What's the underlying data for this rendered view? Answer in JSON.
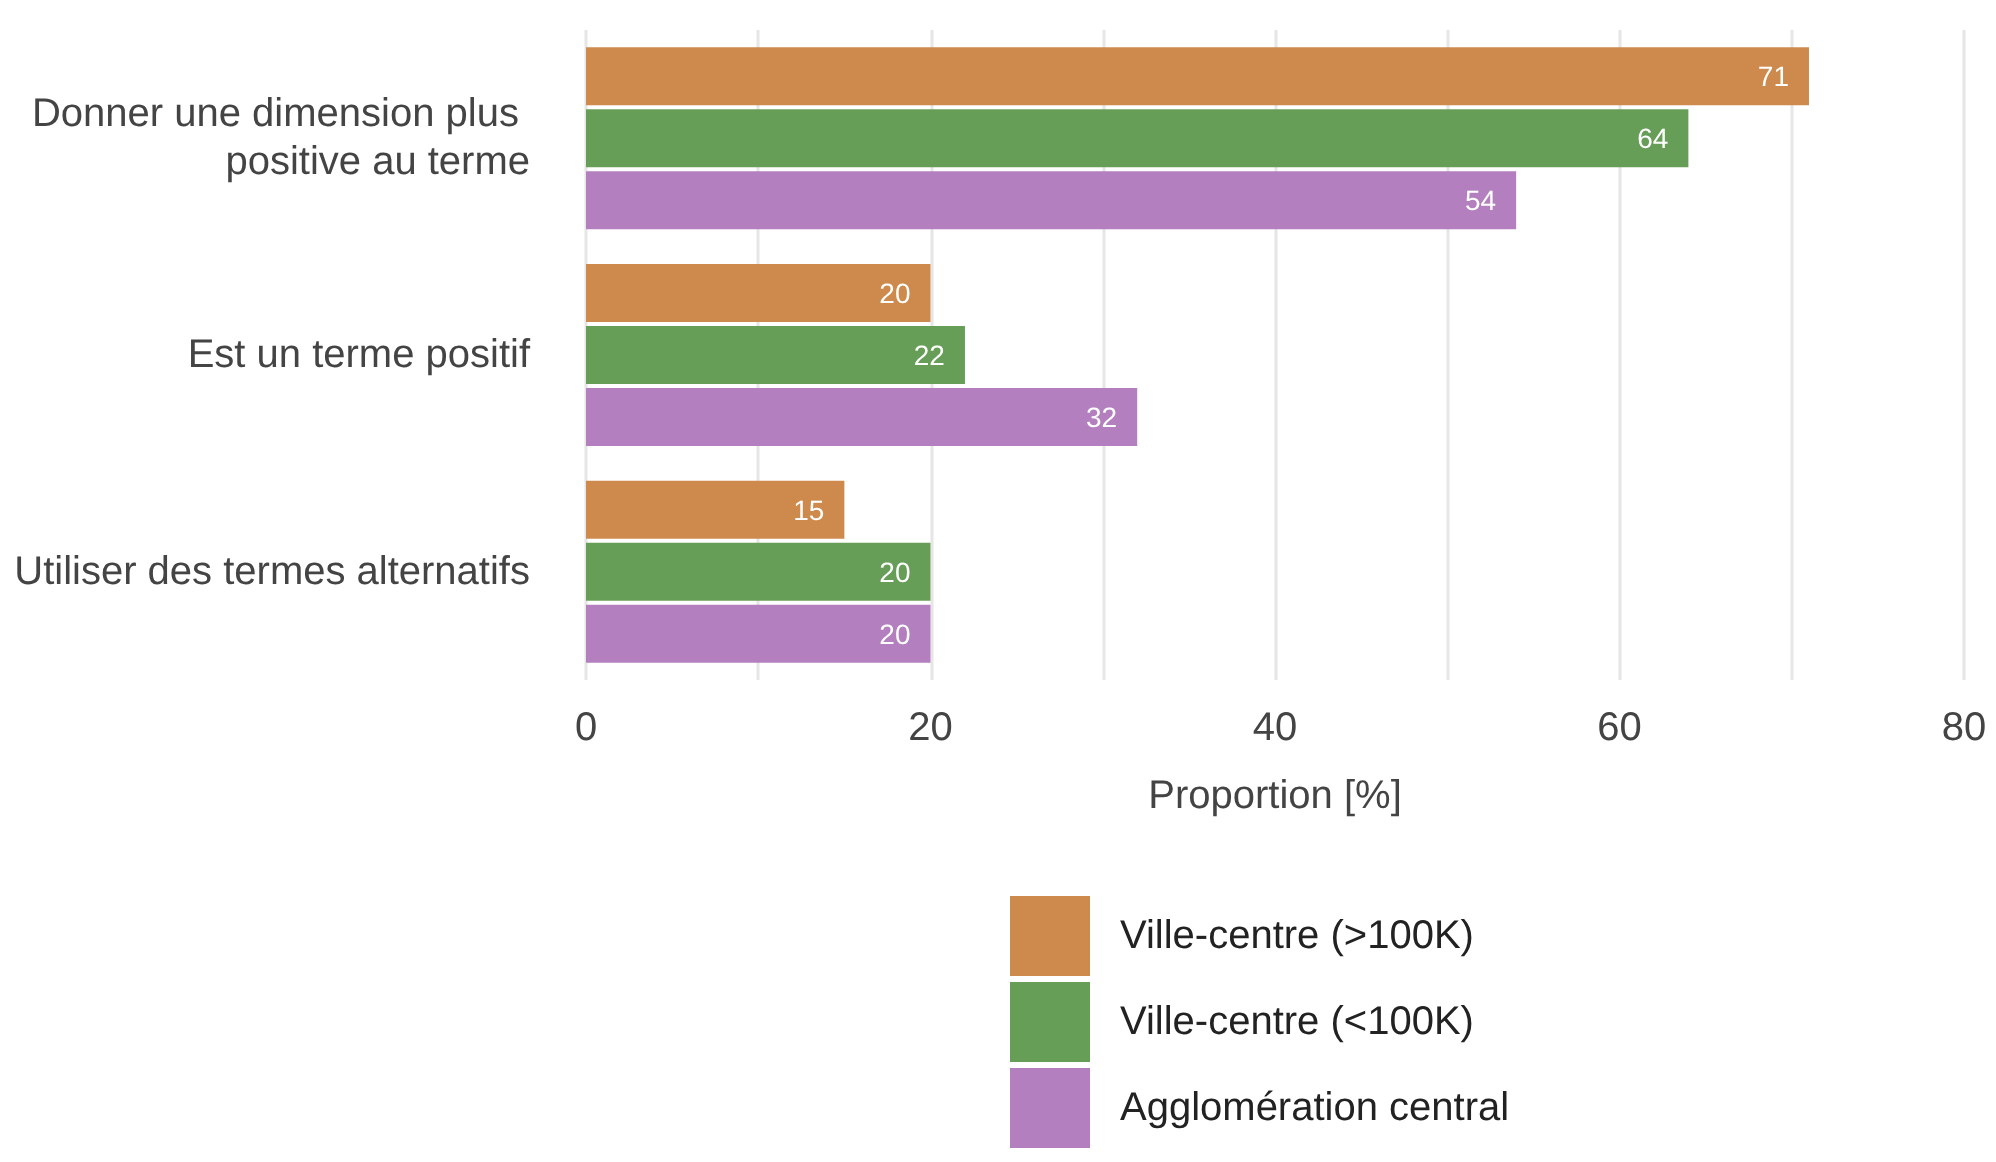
{
  "chart_data": {
    "type": "bar",
    "orientation": "horizontal",
    "xlabel": "Proportion [%]",
    "categories": [
      "Donner une dimension plus positive au terme",
      "Est un terme positif",
      "Utiliser des termes alternatifs"
    ],
    "series": [
      {
        "name": "Ville-centre (>100K)",
        "color": "#cd8a4c",
        "values": [
          71,
          20,
          15
        ]
      },
      {
        "name": "Ville-centre (<100K)",
        "color": "#679e57",
        "values": [
          64,
          22,
          20
        ]
      },
      {
        "name": "Agglomération central",
        "color": "#b37fbf",
        "values": [
          54,
          32,
          20
        ]
      }
    ],
    "xlim": [
      0,
      80
    ],
    "xticks": [
      0,
      {
        "value": 10,
        "label": null
      },
      20,
      {
        "value": 30,
        "label": null
      },
      40,
      {
        "value": 50,
        "label": null
      },
      60,
      {
        "value": 70,
        "label": null
      },
      80
    ],
    "grid": "x",
    "legend": "bottom",
    "data_labels": true
  }
}
